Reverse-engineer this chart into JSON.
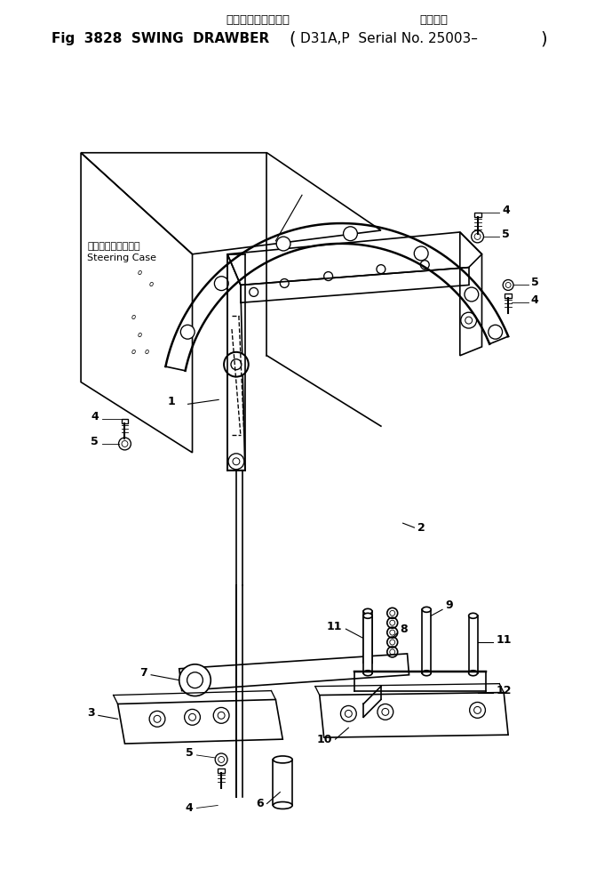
{
  "title_line1_left": "スウィングドローバ",
  "title_line1_right": "適用号機",
  "title_line2": "Fig  3828  SWING  DRAWBER",
  "title_line2_right": "D31A,P  Serial No. 25003–",
  "steering_case_ja": "ステアリングケース",
  "steering_case_en": "Steering Case",
  "bg_color": "#ffffff",
  "line_color": "#000000"
}
